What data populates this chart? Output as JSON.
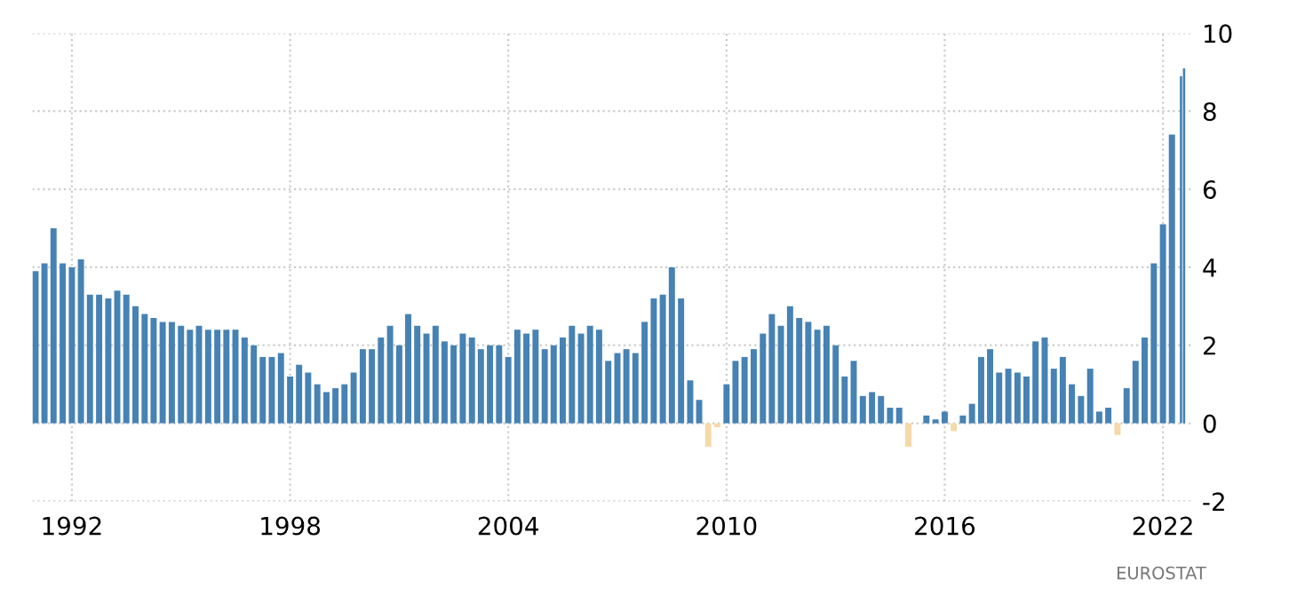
{
  "chart_data": {
    "type": "bar",
    "x": [
      "1991-01",
      "1991-04",
      "1991-07",
      "1991-10",
      "1992-01",
      "1992-04",
      "1992-07",
      "1992-10",
      "1993-01",
      "1993-04",
      "1993-07",
      "1993-10",
      "1994-01",
      "1994-04",
      "1994-07",
      "1994-10",
      "1995-01",
      "1995-04",
      "1995-07",
      "1995-10",
      "1996-01",
      "1996-04",
      "1996-07",
      "1996-10",
      "1997-01",
      "1997-04",
      "1997-07",
      "1997-10",
      "1998-01",
      "1998-04",
      "1998-07",
      "1998-10",
      "1999-01",
      "1999-04",
      "1999-07",
      "1999-10",
      "2000-01",
      "2000-04",
      "2000-07",
      "2000-10",
      "2001-01",
      "2001-04",
      "2001-07",
      "2001-10",
      "2002-01",
      "2002-04",
      "2002-07",
      "2002-10",
      "2003-01",
      "2003-04",
      "2003-07",
      "2003-10",
      "2004-01",
      "2004-04",
      "2004-07",
      "2004-10",
      "2005-01",
      "2005-04",
      "2005-07",
      "2005-10",
      "2006-01",
      "2006-04",
      "2006-07",
      "2006-10",
      "2007-01",
      "2007-04",
      "2007-07",
      "2007-10",
      "2008-01",
      "2008-04",
      "2008-07",
      "2008-10",
      "2009-01",
      "2009-04",
      "2009-07",
      "2009-10",
      "2010-01",
      "2010-04",
      "2010-07",
      "2010-10",
      "2011-01",
      "2011-04",
      "2011-07",
      "2011-10",
      "2012-01",
      "2012-04",
      "2012-07",
      "2012-10",
      "2013-01",
      "2013-04",
      "2013-07",
      "2013-10",
      "2014-01",
      "2014-04",
      "2014-07",
      "2014-10",
      "2015-01",
      "2015-04",
      "2015-07",
      "2015-10",
      "2016-01",
      "2016-04",
      "2016-07",
      "2016-10",
      "2017-01",
      "2017-04",
      "2017-07",
      "2017-10",
      "2018-01",
      "2018-04",
      "2018-07",
      "2018-10",
      "2019-01",
      "2019-04",
      "2019-07",
      "2019-10",
      "2020-01",
      "2020-04",
      "2020-07",
      "2020-10",
      "2021-01",
      "2021-04",
      "2021-07",
      "2021-10",
      "2022-01",
      "2022-04",
      "2022-07",
      "2022-08"
    ],
    "values": [
      3.9,
      4.1,
      5.0,
      4.1,
      4.0,
      4.2,
      3.3,
      3.3,
      3.2,
      3.4,
      3.3,
      3.0,
      2.8,
      2.7,
      2.6,
      2.6,
      2.5,
      2.4,
      2.5,
      2.4,
      2.4,
      2.4,
      2.4,
      2.2,
      2.0,
      1.7,
      1.7,
      1.8,
      1.2,
      1.5,
      1.3,
      1.0,
      0.8,
      0.9,
      1.0,
      1.3,
      1.9,
      1.9,
      2.2,
      2.5,
      2.0,
      2.8,
      2.5,
      2.3,
      2.5,
      2.1,
      2.0,
      2.3,
      2.2,
      1.9,
      2.0,
      2.0,
      1.7,
      2.4,
      2.3,
      2.4,
      1.9,
      2.0,
      2.2,
      2.5,
      2.3,
      2.5,
      2.4,
      1.6,
      1.8,
      1.9,
      1.8,
      2.6,
      3.2,
      3.3,
      4.0,
      3.2,
      1.1,
      0.6,
      -0.6,
      -0.1,
      1.0,
      1.6,
      1.7,
      1.9,
      2.3,
      2.8,
      2.5,
      3.0,
      2.7,
      2.6,
      2.4,
      2.5,
      2.0,
      1.2,
      1.6,
      0.7,
      0.8,
      0.7,
      0.4,
      0.4,
      -0.6,
      0.0,
      0.2,
      0.1,
      0.3,
      -0.2,
      0.2,
      0.5,
      1.7,
      1.9,
      1.3,
      1.4,
      1.3,
      1.2,
      2.1,
      2.2,
      1.4,
      1.7,
      1.0,
      0.7,
      1.4,
      0.3,
      0.4,
      -0.3,
      0.9,
      1.6,
      2.2,
      4.1,
      5.1,
      7.4,
      8.9,
      9.1
    ],
    "colors": [
      "#4682b4",
      "#4682b4",
      "#4682b4",
      "#4682b4",
      "#4682b4",
      "#4682b4",
      "#4682b4",
      "#4682b4",
      "#4682b4",
      "#4682b4",
      "#4682b4",
      "#4682b4",
      "#4682b4",
      "#4682b4",
      "#4682b4",
      "#4682b4",
      "#4682b4",
      "#4682b4",
      "#4682b4",
      "#4682b4",
      "#4682b4",
      "#4682b4",
      "#4682b4",
      "#4682b4",
      "#4682b4",
      "#4682b4",
      "#4682b4",
      "#4682b4",
      "#4682b4",
      "#4682b4",
      "#4682b4",
      "#4682b4",
      "#4682b4",
      "#4682b4",
      "#4682b4",
      "#4682b4",
      "#4682b4",
      "#4682b4",
      "#4682b4",
      "#4682b4",
      "#4682b4",
      "#4682b4",
      "#4682b4",
      "#4682b4",
      "#4682b4",
      "#4682b4",
      "#4682b4",
      "#4682b4",
      "#4682b4",
      "#4682b4",
      "#4682b4",
      "#4682b4",
      "#4682b4",
      "#4682b4",
      "#4682b4",
      "#4682b4",
      "#4682b4",
      "#4682b4",
      "#4682b4",
      "#4682b4",
      "#4682b4",
      "#4682b4",
      "#4682b4",
      "#4682b4",
      "#4682b4",
      "#4682b4",
      "#4682b4",
      "#4682b4",
      "#4682b4",
      "#4682b4",
      "#4682b4",
      "#4682b4",
      "#4682b4",
      "#4682b4",
      "#f5d9a8",
      "#f5d9a8",
      "#4682b4",
      "#4682b4",
      "#4682b4",
      "#4682b4",
      "#4682b4",
      "#4682b4",
      "#4682b4",
      "#4682b4",
      "#4682b4",
      "#4682b4",
      "#4682b4",
      "#4682b4",
      "#4682b4",
      "#4682b4",
      "#4682b4",
      "#4682b4",
      "#4682b4",
      "#4682b4",
      "#4682b4",
      "#4682b4",
      "#f5d9a8",
      "#4682b4",
      "#4682b4",
      "#4682b4",
      "#4682b4",
      "#f5d9a8",
      "#4682b4",
      "#4682b4",
      "#4682b4",
      "#4682b4",
      "#4682b4",
      "#4682b4",
      "#4682b4",
      "#4682b4",
      "#4682b4",
      "#4682b4",
      "#4682b4",
      "#4682b4",
      "#4682b4",
      "#4682b4",
      "#4682b4",
      "#4682b4",
      "#4682b4",
      "#f5d9a8",
      "#4682b4",
      "#4682b4",
      "#4682b4",
      "#4682b4",
      "#4682b4",
      "#4682b4",
      "#4682b4",
      "#4682b4"
    ],
    "xlim": [
      "1990-12",
      "2022-11"
    ],
    "xticks": [
      "1992",
      "1998",
      "2004",
      "2010",
      "2016",
      "2022"
    ],
    "ylim": [
      -2,
      10
    ],
    "yticks": [
      -2,
      0,
      2,
      4,
      6,
      8,
      10
    ],
    "grid": true,
    "annotations": [
      "EUROSTAT"
    ]
  }
}
